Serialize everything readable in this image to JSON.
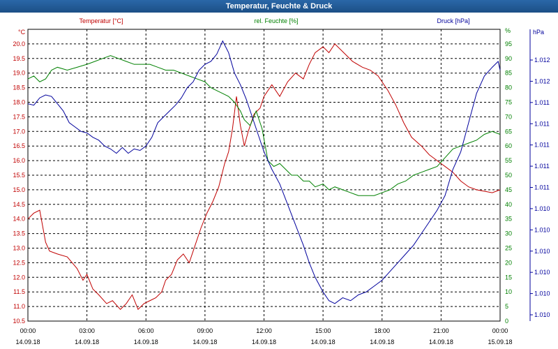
{
  "window": {
    "title": "Temperatur, Feuchte & Druck"
  },
  "colors": {
    "temperature": "#c00000",
    "humidity": "#008000",
    "pressure": "#00009c",
    "grid": "#000000",
    "titlebar": "#1f5796"
  },
  "chart_data": {
    "type": "line",
    "title": "Temperatur, Feuchte & Druck",
    "grid": true,
    "x_ticks": [
      {
        "time": "00:00",
        "date": "14.09.18"
      },
      {
        "time": "03:00",
        "date": "14.09.18"
      },
      {
        "time": "06:00",
        "date": "14.09.18"
      },
      {
        "time": "09:00",
        "date": "14.09.18"
      },
      {
        "time": "12:00",
        "date": "14.09.18"
      },
      {
        "time": "15:00",
        "date": "14.09.18"
      },
      {
        "time": "18:00",
        "date": "14.09.18"
      },
      {
        "time": "21:00",
        "date": "14.09.18"
      },
      {
        "time": "00:00",
        "date": "15.09.18"
      }
    ],
    "x_range_hours": [
      0,
      24
    ],
    "axes": {
      "temperature": {
        "label": "Temperatur [°C]",
        "unit": "°C",
        "range": [
          10.5,
          20.5
        ],
        "ticks": [
          "10.5",
          "11.0",
          "11.5",
          "12.0",
          "12.5",
          "13.0",
          "13.5",
          "14.0",
          "14.5",
          "15.0",
          "15.5",
          "16.0",
          "16.5",
          "17.0",
          "17.5",
          "18.0",
          "18.5",
          "19.0",
          "19.5",
          "20.0"
        ]
      },
      "humidity": {
        "label": "rel. Feuchte [%]",
        "unit": "%",
        "range": [
          0,
          100
        ],
        "ticks": [
          "0",
          "5",
          "10",
          "15",
          "20",
          "25",
          "30",
          "35",
          "40",
          "45",
          "50",
          "55",
          "60",
          "65",
          "70",
          "75",
          "80",
          "85",
          "90",
          "95"
        ]
      },
      "pressure": {
        "label": "Druck [hPa]",
        "unit": "hPa",
        "ticks": [
          "1.010",
          "1.010",
          "1.010",
          "1.010",
          "1.010",
          "1.010",
          "1.011",
          "1.011",
          "1.011",
          "1.011",
          "1.011",
          "1.012",
          "1.012"
        ]
      }
    },
    "series": [
      {
        "name": "Temperatur [°C]",
        "color": "#c00000",
        "axis": "temperature",
        "x": [
          0,
          0.3,
          0.6,
          0.9,
          1.1,
          1.5,
          2,
          2.5,
          2.8,
          3,
          3.3,
          3.6,
          4,
          4.3,
          4.7,
          5,
          5.3,
          5.6,
          5.9,
          6.2,
          6.5,
          6.8,
          7,
          7.3,
          7.6,
          7.9,
          8.2,
          8.5,
          8.8,
          9.1,
          9.4,
          9.7,
          10,
          10.2,
          10.4,
          10.6,
          10.8,
          11,
          11.2,
          11.5,
          11.8,
          12,
          12.4,
          12.8,
          13.2,
          13.6,
          14,
          14.3,
          14.6,
          15,
          15.3,
          15.6,
          15.9,
          16.2,
          16.5,
          17,
          17.4,
          17.8,
          18.3,
          18.7,
          19.1,
          19.5,
          20,
          20.4,
          20.8,
          21.2,
          21.6,
          22,
          22.4,
          22.8,
          23.2,
          23.6,
          24
        ],
        "values": [
          14.0,
          14.2,
          14.3,
          13.2,
          12.9,
          12.8,
          12.7,
          12.3,
          11.9,
          12.1,
          11.6,
          11.4,
          11.1,
          11.2,
          10.9,
          11.1,
          11.4,
          10.9,
          11.1,
          11.2,
          11.3,
          11.5,
          11.9,
          12.1,
          12.6,
          12.8,
          12.5,
          13.1,
          13.7,
          14.2,
          14.6,
          15.1,
          15.9,
          16.3,
          17.1,
          18.2,
          17.2,
          16.5,
          17.0,
          17.6,
          17.8,
          18.2,
          18.6,
          18.2,
          18.7,
          19.0,
          18.8,
          19.3,
          19.7,
          19.9,
          19.7,
          20.0,
          19.8,
          19.6,
          19.4,
          19.2,
          19.1,
          18.9,
          18.4,
          17.9,
          17.3,
          16.8,
          16.5,
          16.2,
          16.0,
          15.8,
          15.6,
          15.3,
          15.1,
          15.0,
          14.95,
          14.9,
          15.0
        ]
      },
      {
        "name": "rel. Feuchte [%]",
        "color": "#008000",
        "axis": "humidity",
        "x": [
          0,
          0.3,
          0.6,
          0.9,
          1.2,
          1.5,
          2,
          2.5,
          3,
          3.4,
          3.8,
          4.2,
          4.6,
          5,
          5.4,
          5.8,
          6.2,
          6.6,
          7,
          7.4,
          7.8,
          8.2,
          8.6,
          9,
          9.3,
          9.6,
          9.9,
          10.2,
          10.5,
          10.8,
          11,
          11.3,
          11.6,
          11.9,
          12.2,
          12.5,
          12.8,
          13.1,
          13.4,
          13.7,
          14,
          14.3,
          14.6,
          15,
          15.3,
          15.6,
          16,
          16.4,
          16.8,
          17.2,
          17.6,
          18,
          18.4,
          18.8,
          19.2,
          19.6,
          20,
          20.4,
          20.8,
          21.2,
          21.6,
          22,
          22.4,
          22.8,
          23.2,
          23.6,
          24
        ],
        "values": [
          83,
          84,
          82,
          83,
          86,
          87,
          86,
          87,
          88,
          89,
          90,
          91,
          90,
          89,
          88,
          88,
          88,
          87,
          86,
          86,
          85,
          84,
          83,
          82,
          80,
          79,
          78,
          77,
          75,
          72,
          69,
          67,
          72,
          66,
          55,
          53,
          54,
          52,
          50,
          50,
          48,
          48,
          46,
          47,
          45,
          46,
          45,
          44,
          43,
          43,
          43,
          44,
          45,
          47,
          48,
          50,
          51,
          52,
          53,
          56,
          59,
          60,
          61,
          62,
          64,
          65,
          64
        ]
      },
      {
        "name": "Druck [hPa]",
        "color": "#00009c",
        "axis": "pressure",
        "x": [
          0,
          0.3,
          0.6,
          0.9,
          1.2,
          1.5,
          1.8,
          2.1,
          2.4,
          2.7,
          3,
          3.3,
          3.6,
          3.9,
          4.2,
          4.5,
          4.8,
          5.1,
          5.4,
          5.7,
          6,
          6.3,
          6.6,
          6.9,
          7.2,
          7.5,
          7.8,
          8.1,
          8.4,
          8.7,
          9,
          9.3,
          9.6,
          9.9,
          10.2,
          10.5,
          10.8,
          11.1,
          11.4,
          11.7,
          12,
          12.4,
          12.8,
          13.2,
          13.6,
          14,
          14.3,
          14.6,
          15,
          15.3,
          15.6,
          16,
          16.4,
          16.8,
          17.2,
          17.6,
          18,
          18.4,
          18.8,
          19.2,
          19.6,
          20,
          20.4,
          20.8,
          21.2,
          21.6,
          22,
          22.4,
          22.8,
          23.2,
          23.6,
          23.9,
          24
        ],
        "x_unit": "hours",
        "level": [
          0.745,
          0.74,
          0.765,
          0.775,
          0.77,
          0.745,
          0.72,
          0.68,
          0.665,
          0.65,
          0.645,
          0.63,
          0.62,
          0.6,
          0.59,
          0.575,
          0.595,
          0.575,
          0.59,
          0.585,
          0.6,
          0.63,
          0.68,
          0.7,
          0.72,
          0.74,
          0.765,
          0.8,
          0.82,
          0.86,
          0.88,
          0.89,
          0.915,
          0.96,
          0.92,
          0.85,
          0.81,
          0.76,
          0.7,
          0.64,
          0.58,
          0.52,
          0.47,
          0.4,
          0.33,
          0.26,
          0.2,
          0.15,
          0.1,
          0.07,
          0.06,
          0.08,
          0.07,
          0.09,
          0.1,
          0.12,
          0.14,
          0.17,
          0.2,
          0.23,
          0.26,
          0.3,
          0.34,
          0.38,
          0.43,
          0.52,
          0.58,
          0.68,
          0.78,
          0.84,
          0.87,
          0.89,
          0.86
        ]
      }
    ]
  }
}
